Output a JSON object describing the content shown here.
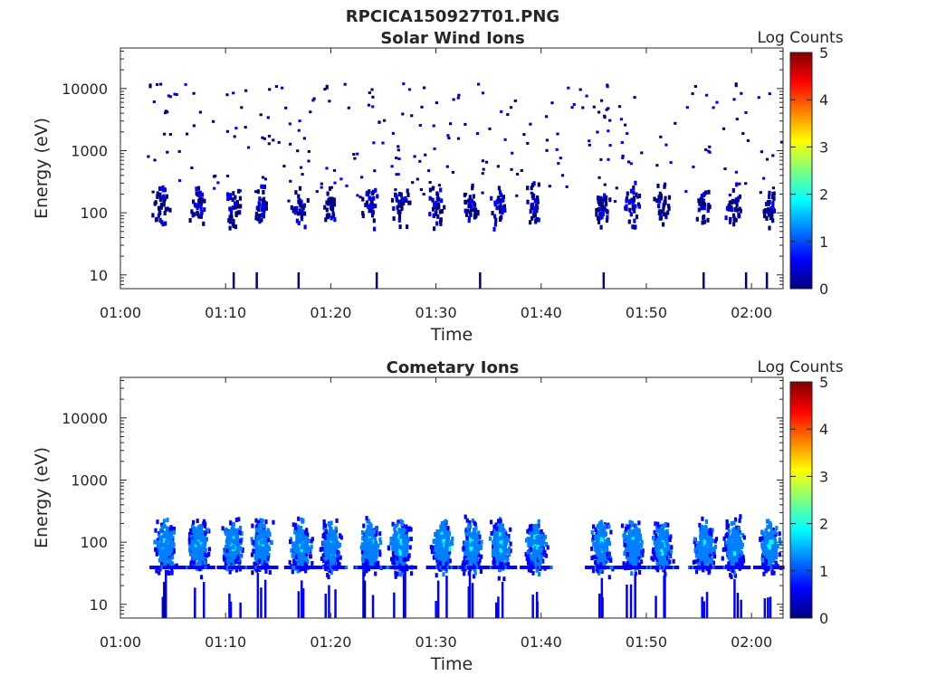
{
  "figure": {
    "title": "RPCICA150927T01.PNG"
  },
  "colormap": [
    "#00007f",
    "#0000ff",
    "#007fff",
    "#00ffff",
    "#7fff7f",
    "#ffff00",
    "#ff7f00",
    "#ff0000",
    "#7f0000"
  ],
  "chart_data": [
    {
      "type": "heatmap",
      "title": "Solar Wind Ions",
      "xlabel": "Time",
      "ylabel": "Energy (eV)",
      "xticks": [
        "01:00",
        "01:10",
        "01:20",
        "01:30",
        "01:40",
        "01:50",
        "02:00"
      ],
      "xlim_minutes": [
        0,
        63
      ],
      "yticks": [
        "10",
        "100",
        "1000",
        "10000"
      ],
      "ylim_ev": [
        6,
        45000
      ],
      "yscale": "log",
      "colorbar": {
        "label": "Log Counts",
        "ticks": [
          "0",
          "1",
          "2",
          "3",
          "4",
          "5"
        ],
        "range": [
          0,
          5
        ]
      },
      "data_start_minute": 2.5,
      "data_end_minute": 63,
      "bursts_minute": [
        3.8,
        7.4,
        10.6,
        13.4,
        16.9,
        19.8,
        23.6,
        26.5,
        29.9,
        33.2,
        35.9,
        39.3,
        45.6,
        48.6,
        51.4,
        55.3,
        58.3,
        61.6
      ],
      "pixels": [
        {
          "t": 4.0,
          "e": 150,
          "v": 0.2
        },
        {
          "t": 4.6,
          "e": 120,
          "v": 0.2
        },
        {
          "t": 7.5,
          "e": 170,
          "v": 0.2
        },
        {
          "t": 10.9,
          "e": 100,
          "v": 0.2
        },
        {
          "t": 13.5,
          "e": 180,
          "v": 0.3
        },
        {
          "t": 16.8,
          "e": 200,
          "v": 0.2
        },
        {
          "t": 23.8,
          "e": 160,
          "v": 0.3
        },
        {
          "t": 26.4,
          "e": 110,
          "v": 0.2
        },
        {
          "t": 33.0,
          "e": 140,
          "v": 0.2
        },
        {
          "t": 39.5,
          "e": 190,
          "v": 0.3
        },
        {
          "t": 45.7,
          "e": 150,
          "v": 0.3
        },
        {
          "t": 48.3,
          "e": 120,
          "v": 0.2
        },
        {
          "t": 55.4,
          "e": 130,
          "v": 0.4
        },
        {
          "t": 61.8,
          "e": 110,
          "v": 0.3
        },
        {
          "t": 2.7,
          "e": 12000,
          "v": 0.1
        },
        {
          "t": 19.5,
          "e": 11500,
          "v": 0.1
        },
        {
          "t": 58.4,
          "e": 12500,
          "v": 0.1
        }
      ]
    },
    {
      "type": "heatmap",
      "title": "Cometary Ions",
      "xlabel": "Time",
      "ylabel": "Energy (eV)",
      "xticks": [
        "01:00",
        "01:10",
        "01:20",
        "01:30",
        "01:40",
        "01:50",
        "02:00"
      ],
      "xlim_minutes": [
        0,
        63
      ],
      "yticks": [
        "10",
        "100",
        "1000",
        "10000"
      ],
      "ylim_ev": [
        6,
        45000
      ],
      "yscale": "log",
      "colorbar": {
        "label": "Log Counts",
        "ticks": [
          "0",
          "1",
          "2",
          "3",
          "4",
          "5"
        ],
        "range": [
          0,
          5
        ]
      },
      "data_start_minute": 2.5,
      "data_end_minute": 63,
      "bursts_minute": [
        4.2,
        7.3,
        10.6,
        13.3,
        17.0,
        19.9,
        23.6,
        26.5,
        30.5,
        33.3,
        36.0,
        39.4,
        45.6,
        48.6,
        51.4,
        55.4,
        58.2,
        61.6
      ],
      "pixels": [
        {
          "t": 4.2,
          "e": 110,
          "v": 1.4
        },
        {
          "t": 7.3,
          "e": 100,
          "v": 1.3
        },
        {
          "t": 10.6,
          "e": 90,
          "v": 1.3
        },
        {
          "t": 13.3,
          "e": 110,
          "v": 1.4
        },
        {
          "t": 17.0,
          "e": 120,
          "v": 1.5
        },
        {
          "t": 19.9,
          "e": 80,
          "v": 1.2
        },
        {
          "t": 23.6,
          "e": 110,
          "v": 1.5
        },
        {
          "t": 26.5,
          "e": 90,
          "v": 1.3
        },
        {
          "t": 31.2,
          "e": 85,
          "v": 2.0
        },
        {
          "t": 33.3,
          "e": 100,
          "v": 1.4
        },
        {
          "t": 36.0,
          "e": 95,
          "v": 1.3
        },
        {
          "t": 39.4,
          "e": 110,
          "v": 1.5
        },
        {
          "t": 45.6,
          "e": 120,
          "v": 1.7
        },
        {
          "t": 48.6,
          "e": 110,
          "v": 1.4
        },
        {
          "t": 51.4,
          "e": 100,
          "v": 1.3
        },
        {
          "t": 55.4,
          "e": 110,
          "v": 1.6
        },
        {
          "t": 58.2,
          "e": 100,
          "v": 1.3
        },
        {
          "t": 61.6,
          "e": 90,
          "v": 1.6
        }
      ]
    }
  ]
}
